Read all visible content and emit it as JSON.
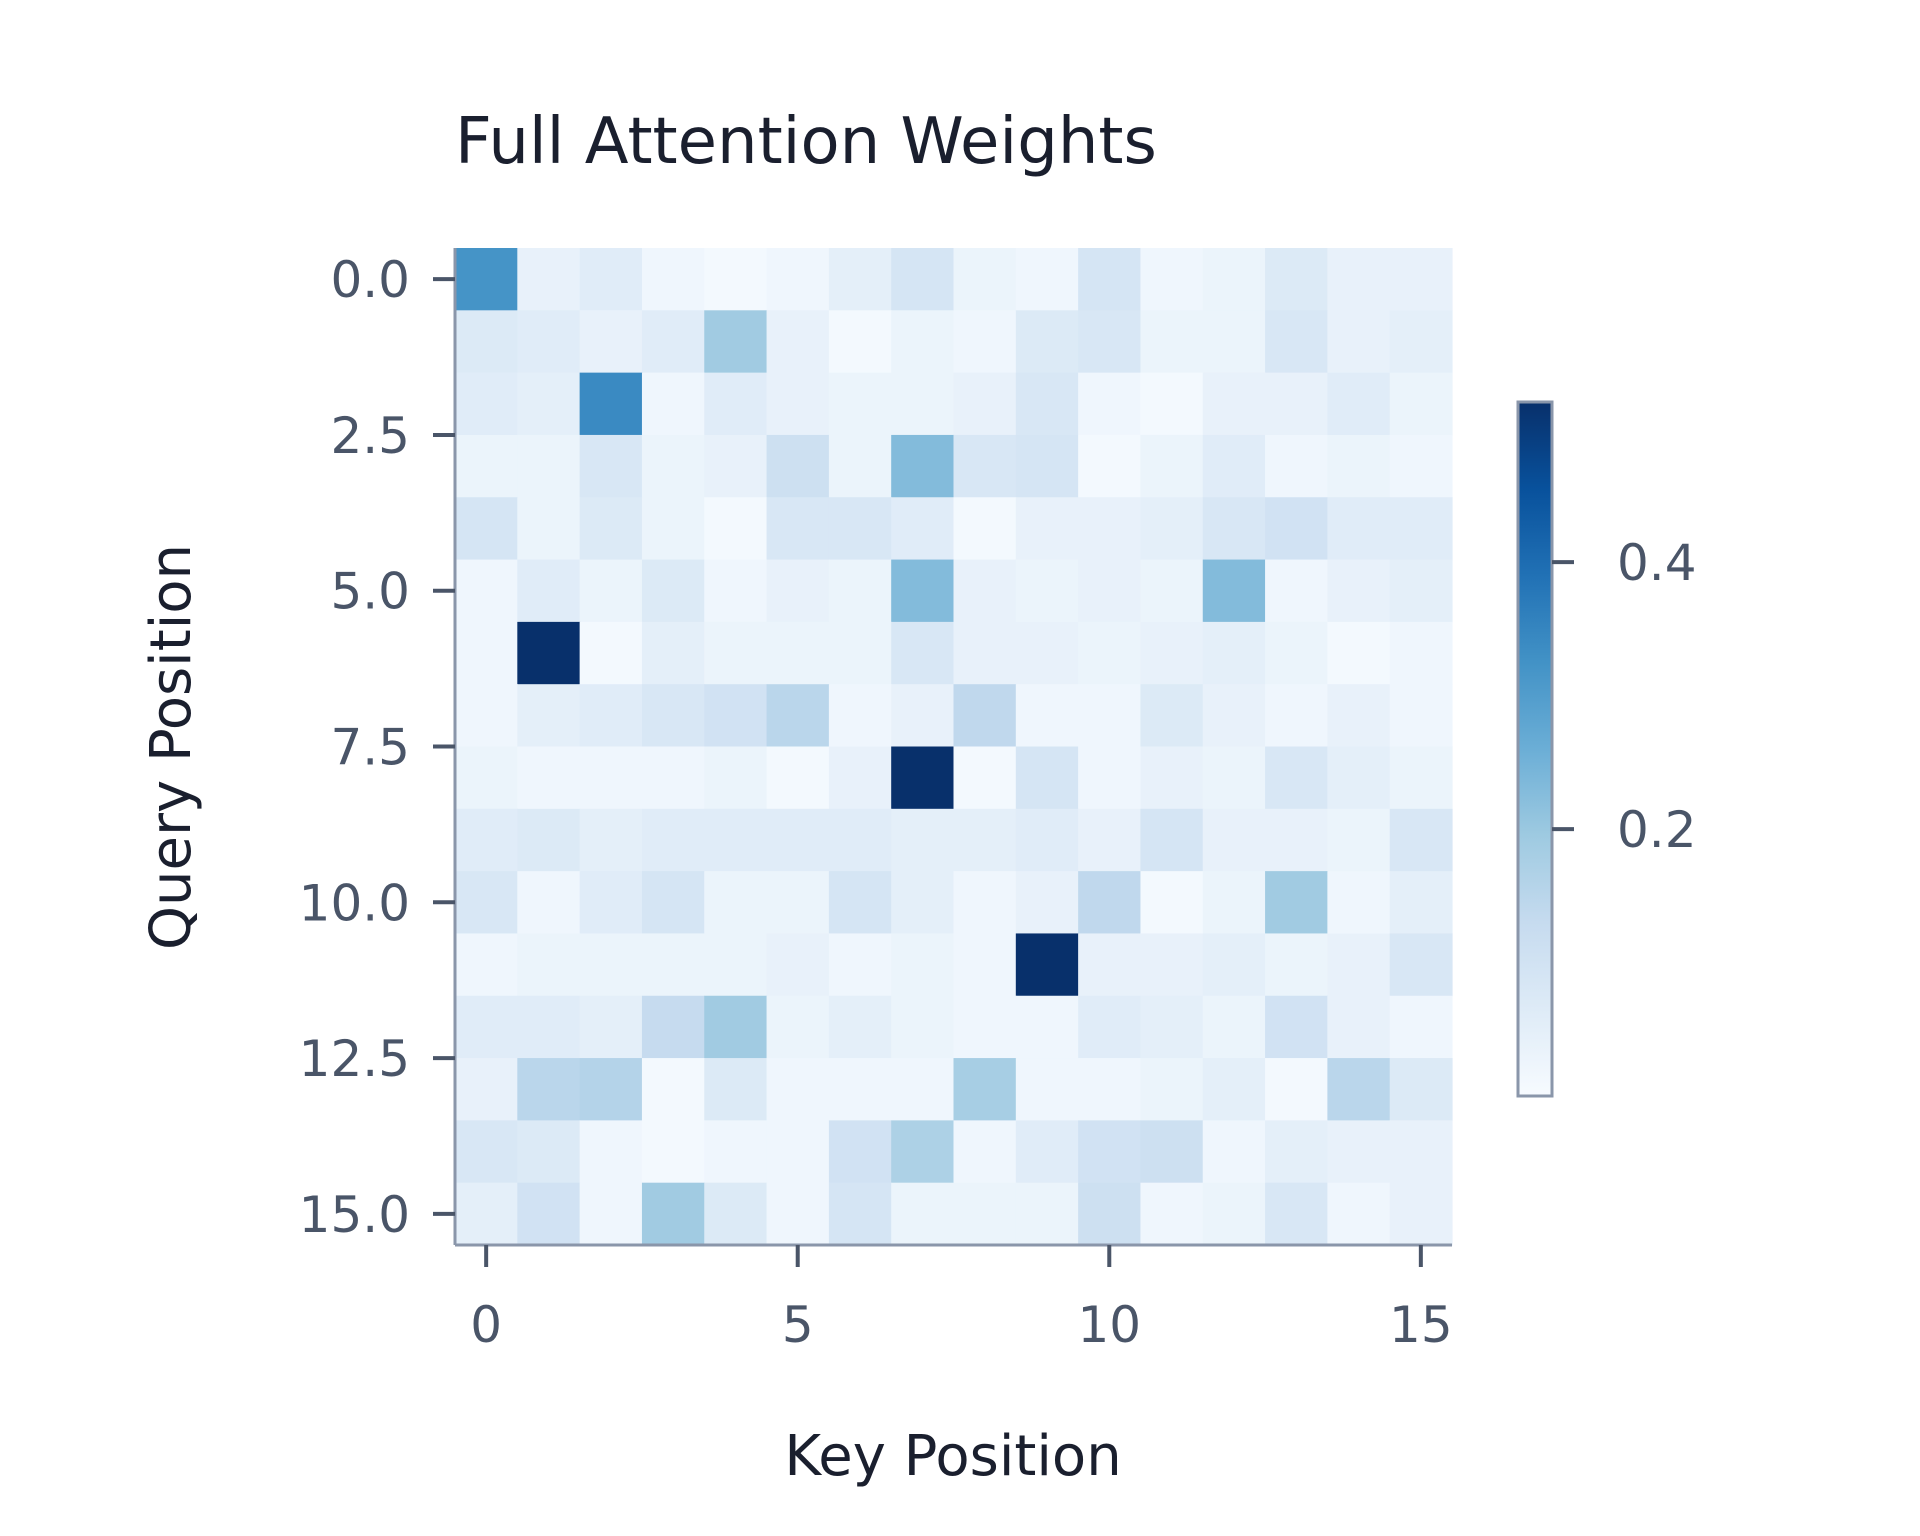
{
  "chart_data": {
    "type": "heatmap",
    "title": "Full Attention Weights",
    "xlabel": "Key Position",
    "ylabel": "Query Position",
    "x_ticks": [
      "0",
      "5",
      "10",
      "15"
    ],
    "x_tick_values": [
      0,
      5,
      10,
      15
    ],
    "y_ticks": [
      "0.0",
      "2.5",
      "5.0",
      "7.5",
      "10.0",
      "12.5",
      "15.0"
    ],
    "y_tick_values": [
      0,
      2.5,
      5,
      7.5,
      10,
      12.5,
      15
    ],
    "colorbar_ticks": [
      "0.2",
      "0.4"
    ],
    "colorbar_tick_values": [
      0.2,
      0.4
    ],
    "colormap": "Blues",
    "vmin": 0.0,
    "vmax": 0.52,
    "rows": 16,
    "cols": 16,
    "values": [
      [
        0.32,
        0.04,
        0.06,
        0.02,
        0.01,
        0.02,
        0.05,
        0.09,
        0.03,
        0.02,
        0.09,
        0.02,
        0.03,
        0.07,
        0.04,
        0.04
      ],
      [
        0.07,
        0.06,
        0.04,
        0.06,
        0.19,
        0.04,
        0.01,
        0.03,
        0.02,
        0.07,
        0.08,
        0.03,
        0.03,
        0.08,
        0.04,
        0.05
      ],
      [
        0.06,
        0.05,
        0.34,
        0.02,
        0.06,
        0.04,
        0.03,
        0.03,
        0.04,
        0.08,
        0.02,
        0.01,
        0.04,
        0.04,
        0.06,
        0.03
      ],
      [
        0.03,
        0.03,
        0.08,
        0.03,
        0.04,
        0.11,
        0.03,
        0.23,
        0.08,
        0.09,
        0.01,
        0.03,
        0.06,
        0.02,
        0.03,
        0.02
      ],
      [
        0.09,
        0.03,
        0.07,
        0.03,
        0.01,
        0.08,
        0.08,
        0.06,
        0.01,
        0.04,
        0.04,
        0.05,
        0.08,
        0.1,
        0.06,
        0.06
      ],
      [
        0.02,
        0.06,
        0.03,
        0.07,
        0.02,
        0.04,
        0.03,
        0.23,
        0.04,
        0.03,
        0.04,
        0.03,
        0.23,
        0.02,
        0.04,
        0.05
      ],
      [
        0.02,
        0.52,
        0.01,
        0.05,
        0.03,
        0.03,
        0.03,
        0.08,
        0.04,
        0.04,
        0.03,
        0.04,
        0.05,
        0.03,
        0.01,
        0.02
      ],
      [
        0.02,
        0.05,
        0.06,
        0.08,
        0.1,
        0.15,
        0.02,
        0.04,
        0.14,
        0.02,
        0.02,
        0.07,
        0.04,
        0.02,
        0.04,
        0.02
      ],
      [
        0.03,
        0.02,
        0.02,
        0.02,
        0.03,
        0.01,
        0.04,
        0.52,
        0.01,
        0.09,
        0.02,
        0.04,
        0.03,
        0.08,
        0.05,
        0.03
      ],
      [
        0.06,
        0.07,
        0.05,
        0.06,
        0.06,
        0.06,
        0.06,
        0.05,
        0.05,
        0.06,
        0.04,
        0.09,
        0.04,
        0.04,
        0.03,
        0.08
      ],
      [
        0.08,
        0.02,
        0.06,
        0.09,
        0.03,
        0.03,
        0.09,
        0.05,
        0.02,
        0.04,
        0.14,
        0.01,
        0.03,
        0.19,
        0.02,
        0.05
      ],
      [
        0.02,
        0.03,
        0.03,
        0.03,
        0.03,
        0.04,
        0.02,
        0.03,
        0.02,
        0.52,
        0.04,
        0.04,
        0.05,
        0.03,
        0.04,
        0.08
      ],
      [
        0.06,
        0.06,
        0.05,
        0.13,
        0.19,
        0.03,
        0.05,
        0.03,
        0.02,
        0.02,
        0.06,
        0.05,
        0.03,
        0.1,
        0.04,
        0.02
      ],
      [
        0.04,
        0.15,
        0.16,
        0.01,
        0.07,
        0.02,
        0.02,
        0.02,
        0.18,
        0.02,
        0.02,
        0.03,
        0.05,
        0.01,
        0.15,
        0.07
      ],
      [
        0.08,
        0.07,
        0.02,
        0.01,
        0.02,
        0.02,
        0.1,
        0.17,
        0.02,
        0.06,
        0.1,
        0.11,
        0.02,
        0.05,
        0.04,
        0.04
      ],
      [
        0.05,
        0.1,
        0.02,
        0.19,
        0.07,
        0.02,
        0.09,
        0.03,
        0.03,
        0.03,
        0.11,
        0.02,
        0.03,
        0.08,
        0.02,
        0.04
      ]
    ]
  }
}
